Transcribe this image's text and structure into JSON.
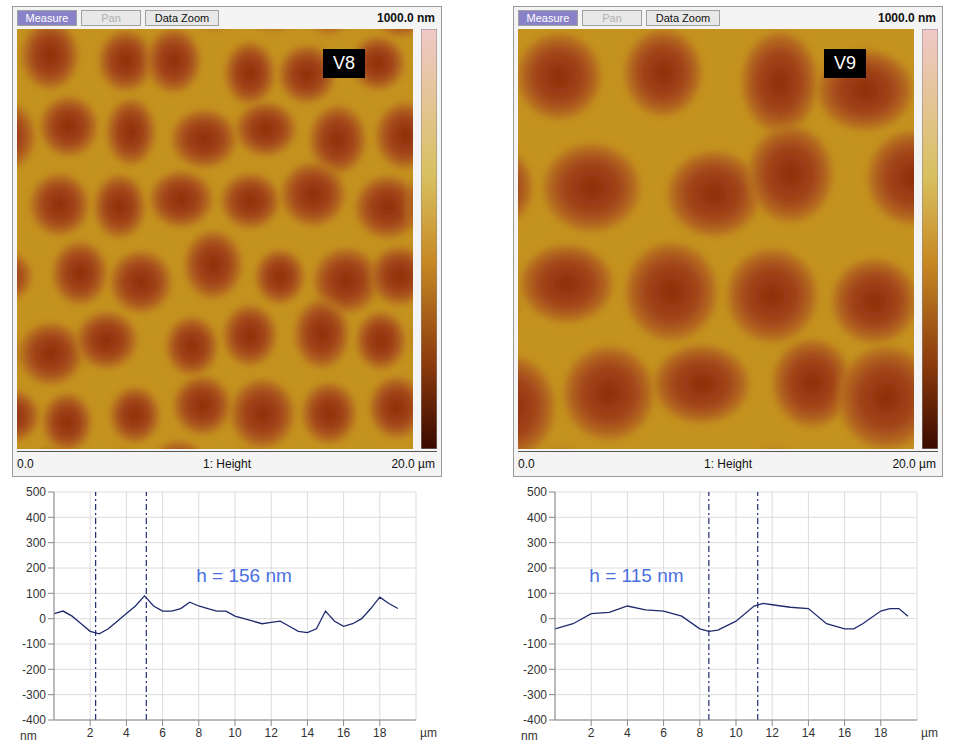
{
  "afm_images": [
    {
      "buttons": [
        "Measure",
        "Pan",
        "Data Zoom"
      ],
      "scale_max": "1000.0 nm",
      "sample": "V8",
      "x_start": "0.0",
      "channel": "1: Height",
      "x_end": "20.0 µm"
    },
    {
      "buttons": [
        "Measure",
        "Pan",
        "Data Zoom"
      ],
      "scale_max": "1000.0 nm",
      "sample": "V9",
      "x_start": "0.0",
      "channel": "1: Height",
      "x_end": "20.0 µm"
    }
  ],
  "chart_data": [
    {
      "type": "line",
      "x_label": "µm",
      "y_label": "nm",
      "x": [
        0,
        0.5,
        1,
        1.5,
        2,
        2.5,
        3,
        3.5,
        4,
        4.5,
        5,
        5.5,
        6,
        6.5,
        7,
        7.5,
        8,
        8.5,
        9,
        9.5,
        10,
        10.5,
        11,
        11.5,
        12,
        12.5,
        13,
        13.5,
        14,
        14.5,
        15,
        15.5,
        16,
        16.5,
        17,
        17.5,
        18,
        18.5,
        19
      ],
      "values": [
        20,
        30,
        10,
        -20,
        -50,
        -60,
        -40,
        -10,
        20,
        50,
        90,
        50,
        30,
        30,
        40,
        65,
        50,
        40,
        30,
        30,
        10,
        0,
        -10,
        -20,
        -15,
        -10,
        -30,
        -50,
        -55,
        -40,
        30,
        -10,
        -30,
        -20,
        0,
        40,
        85,
        60,
        40
      ],
      "color": "#1f2a6e",
      "line_style": "solid",
      "xlim": [
        0,
        20
      ],
      "xticks": [
        2,
        4,
        6,
        8,
        10,
        12,
        14,
        16,
        18
      ],
      "ylim": [
        -400,
        500
      ],
      "yticks": [
        -400,
        -300,
        -200,
        -100,
        0,
        100,
        200,
        300,
        400,
        500
      ],
      "grid": true,
      "cursor_x": [
        2.3,
        5.1
      ],
      "annotations": [
        {
          "text": "h = 156 nm",
          "x": 10.5,
          "y": 170
        }
      ]
    },
    {
      "type": "line",
      "x_label": "µm",
      "y_label": "nm",
      "x": [
        0,
        1,
        2,
        3,
        4,
        5,
        6,
        7,
        8,
        8.5,
        9,
        10,
        11,
        11.5,
        12,
        13,
        14,
        15,
        16,
        16.5,
        17,
        18,
        18.5,
        19,
        19.5
      ],
      "values": [
        -40,
        -20,
        20,
        25,
        50,
        35,
        30,
        10,
        -40,
        -50,
        -45,
        -10,
        50,
        60,
        55,
        45,
        40,
        -20,
        -40,
        -40,
        -20,
        30,
        40,
        40,
        10
      ],
      "color": "#1f2a6e",
      "line_style": "solid",
      "xlim": [
        0,
        20
      ],
      "xticks": [
        2,
        4,
        6,
        8,
        10,
        12,
        14,
        16,
        18
      ],
      "ylim": [
        -400,
        500
      ],
      "yticks": [
        -400,
        -300,
        -200,
        -100,
        0,
        100,
        200,
        300,
        400,
        500
      ],
      "grid": true,
      "cursor_x": [
        8.5,
        11.2
      ],
      "annotations": [
        {
          "text": "h = 115 nm",
          "x": 4.5,
          "y": 170
        }
      ]
    }
  ]
}
